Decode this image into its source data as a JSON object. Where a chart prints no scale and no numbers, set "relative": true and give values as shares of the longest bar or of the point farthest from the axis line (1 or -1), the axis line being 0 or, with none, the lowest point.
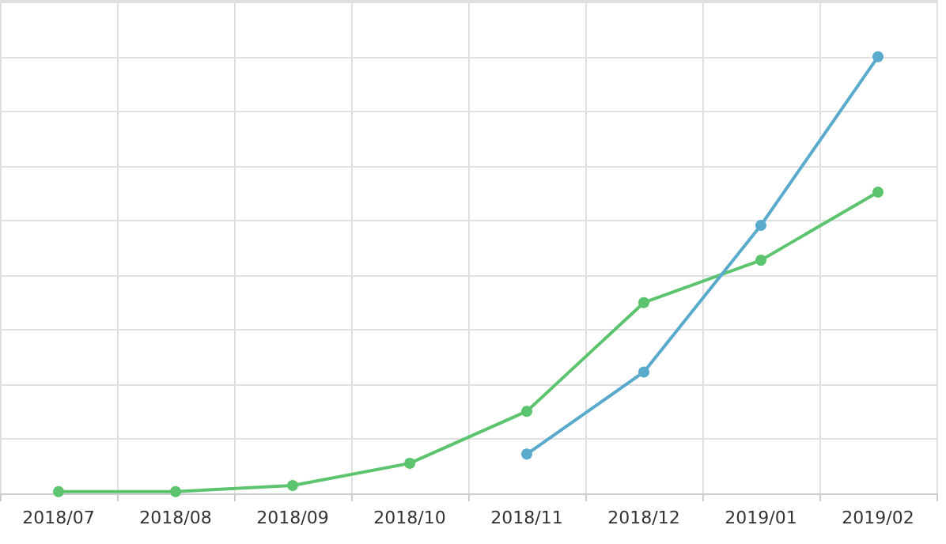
{
  "chart_data": {
    "type": "line",
    "relative": true,
    "categories": [
      "2018/07",
      "2018/08",
      "2018/09",
      "2018/10",
      "2018/11",
      "2018/12",
      "2019/01",
      "2019/02"
    ],
    "series": [
      {
        "color": "#5cc46e",
        "values": [
          0.004,
          0.004,
          0.018,
          0.069,
          0.188,
          0.437,
          0.534,
          0.69
        ]
      },
      {
        "color": "#5aabcb",
        "values": [
          null,
          null,
          null,
          null,
          0.09,
          0.278,
          0.614,
          1
        ]
      }
    ],
    "grid": true,
    "marker": "circle",
    "line_style": "solid"
  }
}
